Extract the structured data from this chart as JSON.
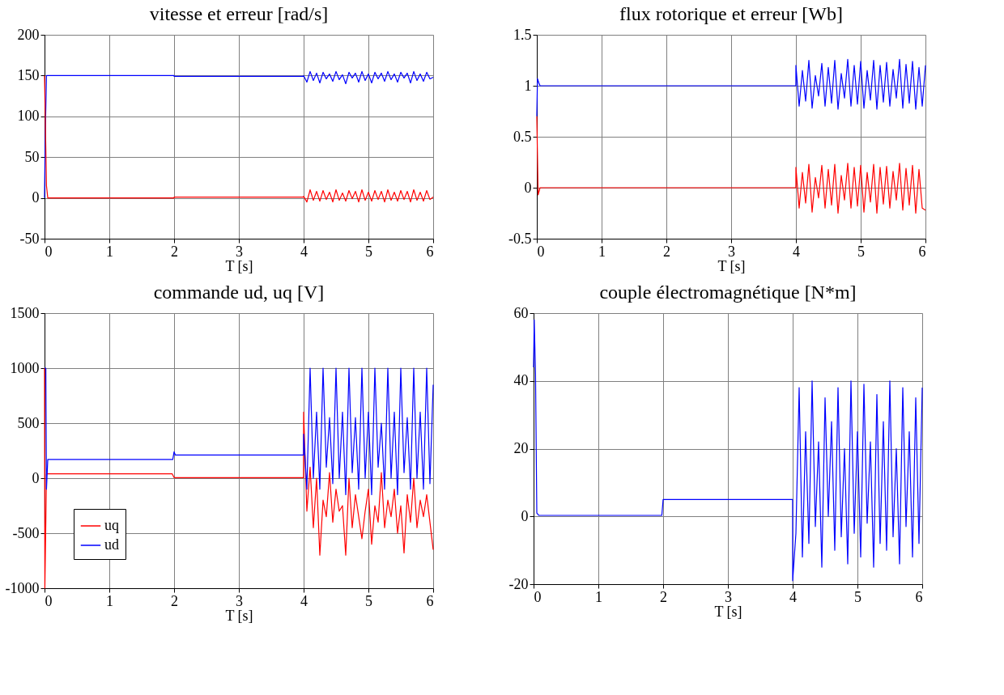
{
  "chart_data": [
    {
      "type": "line",
      "title": "vitesse et erreur [rad/s]",
      "xlabel": "T [s]",
      "xlim": [
        0,
        6
      ],
      "xticks": [
        0,
        1,
        2,
        3,
        4,
        5,
        6
      ],
      "ylim": [
        -50,
        200
      ],
      "yticks": [
        -50,
        0,
        50,
        100,
        150,
        200
      ],
      "grid": true,
      "series": [
        {
          "color": "#0000ff",
          "x": [
            0,
            0.01,
            0.03,
            2,
            2.001,
            3.999,
            4,
            4.05,
            4.1,
            4.15,
            4.2,
            4.25,
            4.3,
            4.35,
            4.4,
            4.45,
            4.5,
            4.55,
            4.6,
            4.65,
            4.7,
            4.75,
            4.8,
            4.85,
            4.9,
            4.95,
            5,
            5.05,
            5.1,
            5.15,
            5.2,
            5.25,
            5.3,
            5.35,
            5.4,
            5.45,
            5.5,
            5.55,
            5.6,
            5.65,
            5.7,
            5.75,
            5.8,
            5.85,
            5.9,
            5.95,
            6
          ],
          "values": [
            0,
            70,
            150,
            150,
            149,
            149,
            150,
            142,
            155,
            144,
            153,
            141,
            154,
            146,
            152,
            143,
            155,
            145,
            151,
            140,
            154,
            147,
            153,
            142,
            155,
            144,
            152,
            141,
            154,
            146,
            153,
            143,
            155,
            145,
            152,
            142,
            154,
            147,
            153,
            141,
            155,
            144,
            152,
            143,
            154,
            146,
            148
          ]
        },
        {
          "color": "#ff0000",
          "x": [
            0,
            0.03,
            0.05,
            2,
            2.001,
            3.999,
            4,
            4.05,
            4.1,
            4.15,
            4.2,
            4.25,
            4.3,
            4.35,
            4.4,
            4.45,
            4.5,
            4.55,
            4.6,
            4.65,
            4.7,
            4.75,
            4.8,
            4.85,
            4.9,
            4.95,
            5,
            5.05,
            5.1,
            5.15,
            5.2,
            5.25,
            5.3,
            5.35,
            5.4,
            5.45,
            5.5,
            5.55,
            5.6,
            5.65,
            5.7,
            5.75,
            5.8,
            5.85,
            5.9,
            5.95,
            6
          ],
          "values": [
            150,
            15,
            0,
            0,
            1,
            1,
            2,
            -5,
            10,
            -3,
            8,
            -4,
            9,
            -2,
            7,
            -5,
            10,
            -3,
            6,
            -4,
            9,
            -1,
            8,
            -5,
            10,
            -3,
            7,
            -4,
            9,
            -2,
            8,
            -5,
            10,
            -3,
            7,
            -4,
            9,
            -2,
            8,
            -5,
            10,
            -3,
            7,
            -4,
            9,
            -2,
            1
          ]
        }
      ]
    },
    {
      "type": "line",
      "title": "flux rotorique et erreur [Wb]",
      "xlabel": "T [s]",
      "xlim": [
        0,
        6
      ],
      "xticks": [
        0,
        1,
        2,
        3,
        4,
        5,
        6
      ],
      "ylim": [
        -0.5,
        1.5
      ],
      "yticks": [
        -0.5,
        0,
        0.5,
        1,
        1.5
      ],
      "grid": true,
      "series": [
        {
          "color": "#0000ff",
          "x": [
            0,
            0.01,
            0.03,
            0.05,
            3.999,
            4,
            4.05,
            4.1,
            4.15,
            4.2,
            4.25,
            4.3,
            4.35,
            4.4,
            4.45,
            4.5,
            4.55,
            4.6,
            4.65,
            4.7,
            4.75,
            4.8,
            4.85,
            4.9,
            4.95,
            5,
            5.05,
            5.1,
            5.15,
            5.2,
            5.25,
            5.3,
            5.35,
            5.4,
            5.45,
            5.5,
            5.55,
            5.6,
            5.65,
            5.7,
            5.75,
            5.8,
            5.85,
            5.9,
            5.95,
            6
          ],
          "values": [
            0.7,
            1.07,
            1.03,
            1,
            1,
            1.2,
            0.8,
            1.15,
            0.85,
            1.25,
            0.78,
            1.1,
            0.9,
            1.22,
            0.8,
            1.18,
            0.83,
            1.25,
            0.77,
            1.12,
            0.88,
            1.26,
            0.8,
            1.2,
            0.82,
            1.24,
            0.78,
            1.15,
            0.86,
            1.25,
            0.77,
            1.2,
            0.84,
            1.23,
            0.8,
            1.16,
            0.88,
            1.26,
            0.78,
            1.21,
            0.83,
            1.24,
            0.77,
            1.18,
            0.8,
            1.2
          ]
        },
        {
          "color": "#ff0000",
          "x": [
            0,
            0.02,
            0.05,
            3.999,
            4,
            4.05,
            4.1,
            4.15,
            4.2,
            4.25,
            4.3,
            4.35,
            4.4,
            4.45,
            4.5,
            4.55,
            4.6,
            4.65,
            4.7,
            4.75,
            4.8,
            4.85,
            4.9,
            4.95,
            5,
            5.05,
            5.1,
            5.15,
            5.2,
            5.25,
            5.3,
            5.35,
            5.4,
            5.45,
            5.5,
            5.55,
            5.6,
            5.65,
            5.7,
            5.75,
            5.8,
            5.85,
            5.9,
            5.95,
            6
          ],
          "values": [
            0.7,
            -0.07,
            0,
            0,
            0.2,
            -0.2,
            0.15,
            -0.15,
            0.23,
            -0.24,
            0.1,
            -0.1,
            0.22,
            -0.2,
            0.18,
            -0.17,
            0.23,
            -0.25,
            0.12,
            -0.12,
            0.24,
            -0.2,
            0.2,
            -0.18,
            0.22,
            -0.24,
            0.15,
            -0.14,
            0.23,
            -0.25,
            0.2,
            -0.16,
            0.21,
            -0.2,
            0.16,
            -0.12,
            0.24,
            -0.22,
            0.19,
            -0.17,
            0.22,
            -0.25,
            0.18,
            -0.2,
            -0.22
          ]
        }
      ]
    },
    {
      "type": "line",
      "title": "commande ud, uq [V]",
      "xlabel": "T [s]",
      "xlim": [
        0,
        6
      ],
      "xticks": [
        0,
        1,
        2,
        3,
        4,
        5,
        6
      ],
      "ylim": [
        -1000,
        1500
      ],
      "yticks": [
        -1000,
        -500,
        0,
        500,
        1000,
        1500
      ],
      "grid": true,
      "legend": "bottom left",
      "series": [
        {
          "name": "uq",
          "color": "#ff0000",
          "x": [
            0,
            0.005,
            0.02,
            0.03,
            1.97,
            2,
            3.999,
            4,
            4.05,
            4.1,
            4.15,
            4.2,
            4.25,
            4.3,
            4.35,
            4.4,
            4.45,
            4.5,
            4.55,
            4.6,
            4.65,
            4.7,
            4.75,
            4.8,
            4.85,
            4.9,
            4.95,
            5,
            5.05,
            5.1,
            5.15,
            5.2,
            5.25,
            5.3,
            5.35,
            5.4,
            5.45,
            5.5,
            5.55,
            5.6,
            5.65,
            5.7,
            5.75,
            5.8,
            5.85,
            5.9,
            5.95,
            6
          ],
          "values": [
            1000,
            -1000,
            -400,
            40,
            40,
            5,
            5,
            600,
            -300,
            100,
            -450,
            0,
            -700,
            -200,
            -350,
            50,
            -400,
            -100,
            -300,
            -250,
            -700,
            0,
            -450,
            -150,
            -350,
            -550,
            -300,
            -100,
            -600,
            -250,
            -400,
            50,
            -450,
            -200,
            -350,
            -100,
            -500,
            -250,
            -680,
            -150,
            -400,
            0,
            -450,
            -200,
            -350,
            -150,
            -400,
            -650
          ]
        },
        {
          "name": "ud",
          "color": "#0000ff",
          "x": [
            0,
            0.02,
            0.03,
            0.05,
            1.98,
            2,
            2.02,
            3.999,
            4,
            4.05,
            4.1,
            4.15,
            4.2,
            4.25,
            4.3,
            4.35,
            4.4,
            4.45,
            4.5,
            4.55,
            4.6,
            4.65,
            4.7,
            4.75,
            4.8,
            4.85,
            4.9,
            4.95,
            5,
            5.05,
            5.1,
            5.15,
            5.2,
            5.25,
            5.3,
            5.35,
            5.4,
            5.45,
            5.5,
            5.55,
            5.6,
            5.65,
            5.7,
            5.75,
            5.8,
            5.85,
            5.9,
            5.95,
            6
          ],
          "values": [
            1000,
            1000,
            -100,
            170,
            170,
            240,
            210,
            210,
            400,
            -100,
            1000,
            0,
            600,
            -100,
            1000,
            100,
            550,
            -50,
            1000,
            0,
            600,
            -150,
            1000,
            50,
            550,
            -100,
            1000,
            0,
            600,
            -150,
            1000,
            100,
            500,
            -100,
            1000,
            0,
            600,
            -150,
            1000,
            50,
            550,
            -100,
            1000,
            0,
            600,
            -100,
            1000,
            -50,
            850
          ]
        }
      ]
    },
    {
      "type": "line",
      "title": "couple électromagnétique [N*m]",
      "xlabel": "T [s]",
      "xlim": [
        0,
        6
      ],
      "xticks": [
        0,
        1,
        2,
        3,
        4,
        5,
        6
      ],
      "ylim": [
        -20,
        60
      ],
      "yticks": [
        -20,
        0,
        20,
        40,
        60
      ],
      "grid": true,
      "series": [
        {
          "color": "#0000ff",
          "x": [
            0,
            0.01,
            0.03,
            0.05,
            0.08,
            1.98,
            2,
            3.999,
            4,
            4.05,
            4.1,
            4.15,
            4.2,
            4.25,
            4.3,
            4.35,
            4.4,
            4.45,
            4.5,
            4.55,
            4.6,
            4.65,
            4.7,
            4.75,
            4.8,
            4.85,
            4.9,
            4.95,
            5,
            5.05,
            5.1,
            5.15,
            5.2,
            5.25,
            5.3,
            5.35,
            5.4,
            5.45,
            5.5,
            5.55,
            5.6,
            5.65,
            5.7,
            5.75,
            5.8,
            5.85,
            5.9,
            5.95,
            6
          ],
          "values": [
            44,
            58,
            42,
            1,
            0.3,
            0.3,
            5,
            5,
            -19,
            -5,
            38,
            -12,
            25,
            -8,
            40,
            -3,
            22,
            -15,
            35,
            0,
            28,
            -10,
            38,
            -6,
            20,
            -14,
            40,
            -5,
            25,
            -12,
            39,
            -2,
            22,
            -15,
            36,
            -8,
            28,
            -10,
            40,
            -6,
            20,
            -14,
            38,
            -3,
            25,
            -12,
            35,
            -8,
            38
          ]
        }
      ]
    }
  ]
}
